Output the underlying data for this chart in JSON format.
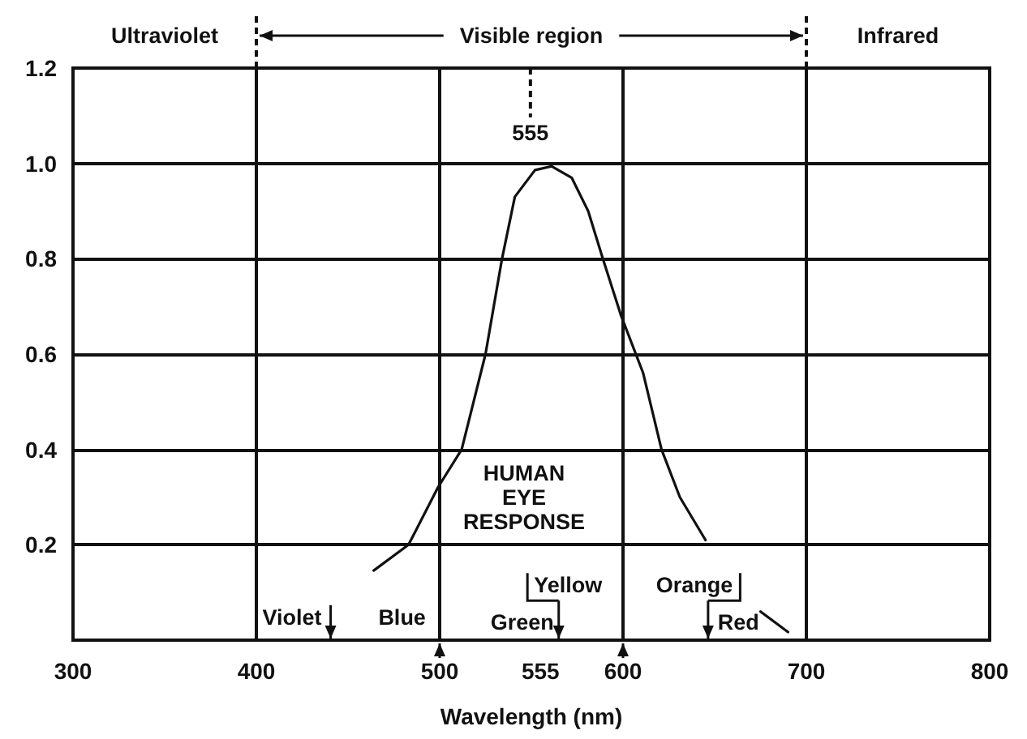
{
  "chart_data": {
    "type": "line",
    "xlabel": "Wavelength (nm)",
    "x": [
      464,
      483,
      499,
      512,
      525,
      534,
      541,
      552,
      561,
      572,
      581,
      589,
      599,
      611,
      621,
      631,
      645,
      null,
      675,
      690
    ],
    "values": [
      0.146,
      0.2,
      0.32,
      0.4,
      0.6,
      0.8,
      0.93,
      0.986,
      0.994,
      0.97,
      0.9,
      0.8,
      0.68,
      0.56,
      0.4,
      0.3,
      0.21,
      null,
      0.06,
      0.017
    ],
    "color": "#111111",
    "marker": "none",
    "line_style": "solid",
    "grid": true,
    "xlim": [
      300,
      800
    ],
    "xticks": [
      300,
      400,
      500,
      555,
      600,
      700,
      800
    ],
    "ylim": [
      0,
      1.2
    ],
    "yticks": [
      0.2,
      0.4,
      0.6,
      0.8,
      {
        "value": 1,
        "label": "1.0"
      },
      1.2
    ],
    "annotations": [
      "Ultraviolet",
      "Visible region",
      "Infrared",
      "555",
      "HUMAN EYE RESPONSE",
      "Violet",
      "Blue",
      "Yellow",
      "Green",
      "Orange",
      "Red"
    ]
  }
}
